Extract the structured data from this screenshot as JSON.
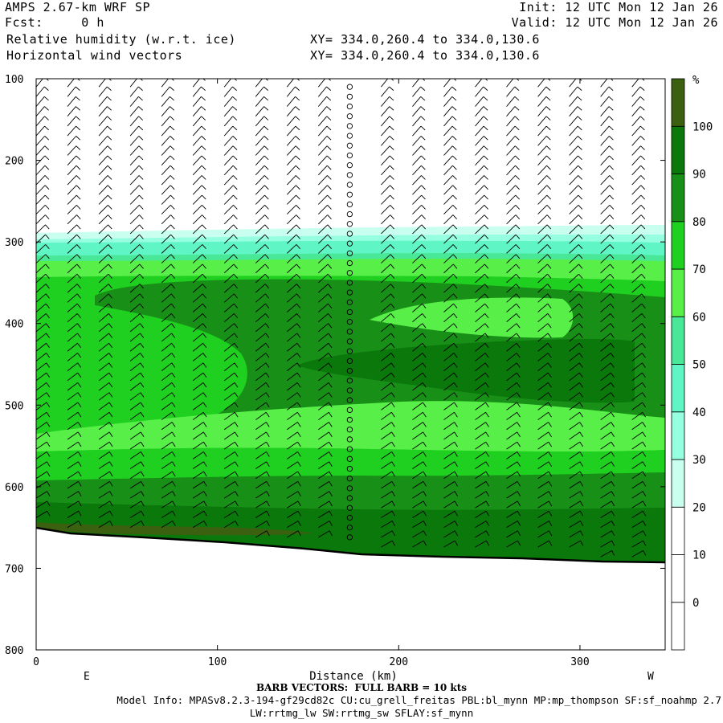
{
  "header": {
    "title": "AMPS 2.67-km WRF SP",
    "fcst": "Fcst:     0 h",
    "init": "Init: 12 UTC Mon 12 Jan 26",
    "valid": "Valid: 12 UTC Mon 12 Jan 26",
    "field1": "Relative humidity (w.r.t. ice)",
    "field2": "Horizontal wind vectors",
    "xy1": "XY= 334.0,260.4 to 334.0,130.6",
    "xy2": "XY= 334.0,260.4 to 334.0,130.6"
  },
  "footer": {
    "barb_note": "BARB VECTORS:  FULL BARB = 10 kts",
    "model_info_line1": "Model Info: MPASv8.2.3-194-gf29cd82c CU:cu_grell_freitas PBL:bl_mynn MP:mp_thompson SF:sf_noahmp 2.7",
    "model_info_line2": "LW:rrtmg_lw SW:rrtmg_sw SFLAY:sf_mynn"
  },
  "chart_data": {
    "type": "heatmap",
    "title": "Relative humidity (w.r.t. ice)",
    "xlabel": "Distance (km)",
    "ylabel": "",
    "x_range": [
      0,
      347
    ],
    "y_range": [
      100,
      800
    ],
    "y_inverted": true,
    "x_ticks": [
      0,
      100,
      200,
      300
    ],
    "y_ticks": [
      100,
      200,
      300,
      400,
      500,
      600,
      700,
      800
    ],
    "x_end_labels": [
      "E",
      "W"
    ],
    "colorbar": {
      "unit": "%",
      "levels": [
        0,
        10,
        20,
        30,
        40,
        50,
        60,
        70,
        80,
        90,
        100
      ],
      "colors": [
        "#ffffff",
        "#ffffff",
        "#ffffff",
        "#c8ffee",
        "#96ffe0",
        "#60f5c4",
        "#48e898",
        "#58f048",
        "#20d020",
        "#189018",
        "#0a780a",
        "#3a6010"
      ]
    },
    "rh_zones_pressure_hPa": [
      {
        "rh": "<30",
        "from": 100,
        "to": 285
      },
      {
        "rh": "30-40",
        "from": 285,
        "to": 295
      },
      {
        "rh": "50-60",
        "from": 295,
        "to": 320
      },
      {
        "rh": "70-80",
        "from": 320,
        "to": 360
      },
      {
        "rh": "80-90",
        "from": 360,
        "to": 540
      },
      {
        "rh": "70-80",
        "from": 540,
        "to": 560
      },
      {
        "rh": "80-90",
        "from": 560,
        "to": 600
      },
      {
        "rh": "90-100",
        "from": 600,
        "to": 690
      }
    ],
    "terrain_surface_hPa": [
      {
        "x": 0,
        "p": 650
      },
      {
        "x": 50,
        "p": 658
      },
      {
        "x": 100,
        "p": 662
      },
      {
        "x": 150,
        "p": 672
      },
      {
        "x": 200,
        "p": 680
      },
      {
        "x": 250,
        "p": 682
      },
      {
        "x": 300,
        "p": 688
      },
      {
        "x": 347,
        "p": 692
      }
    ],
    "calm_column_km": 173,
    "barb_note": "FULL BARB = 10 kts"
  }
}
